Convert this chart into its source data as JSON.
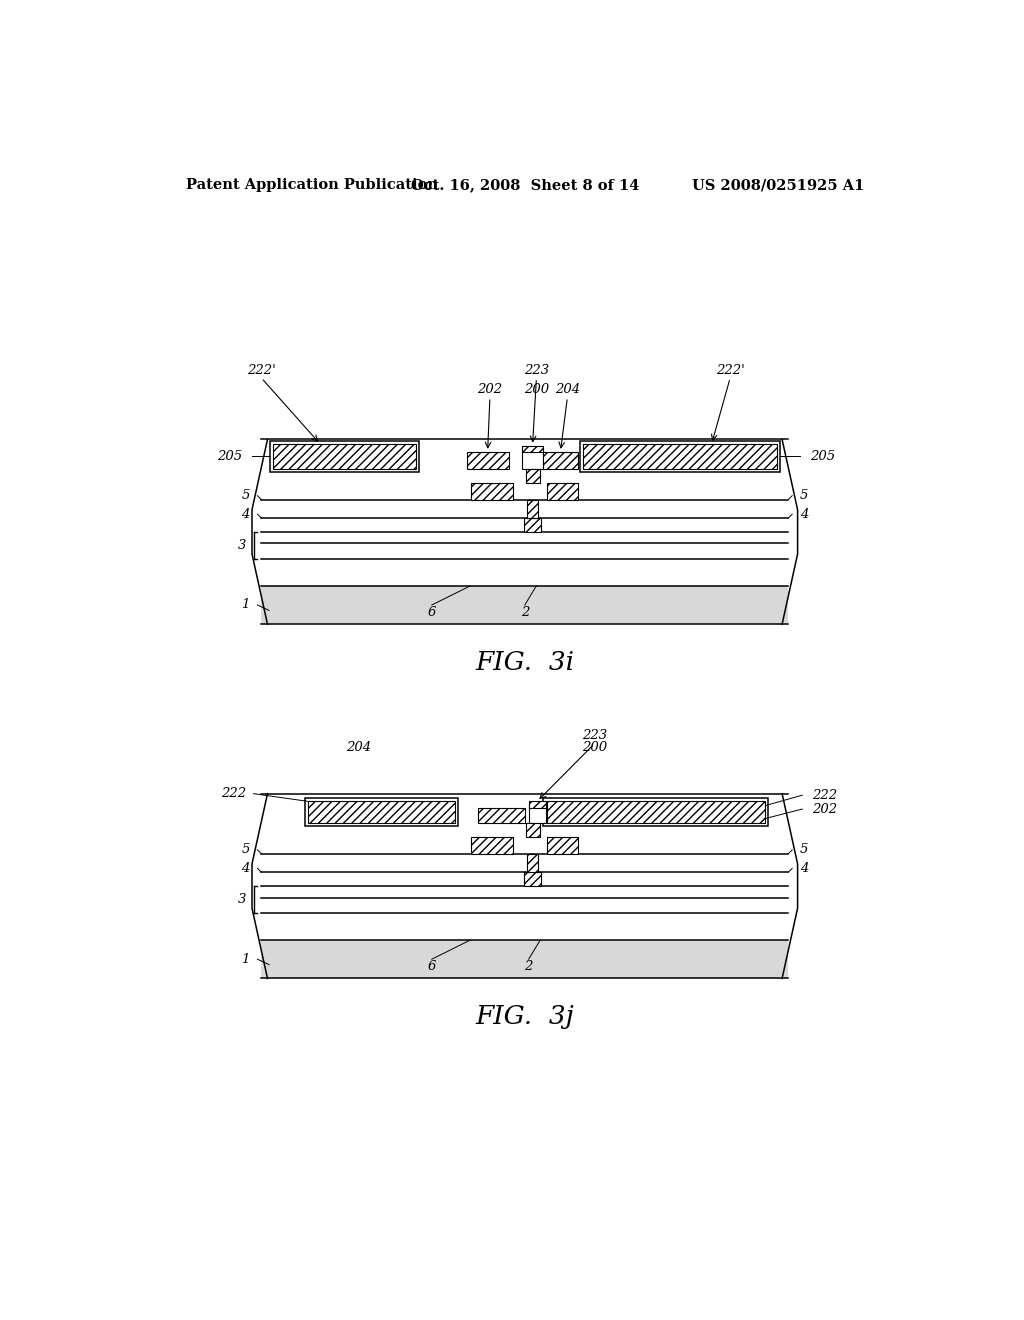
{
  "background_color": "#ffffff",
  "header_left": "Patent Application Publication",
  "header_mid": "Oct. 16, 2008  Sheet 8 of 14",
  "header_right": "US 2008/0251925 A1",
  "header_fontsize": 10.5,
  "fig_label_i": "FIG.  3i",
  "fig_label_j": "FIG.  3j",
  "fig_label_fontsize": 19,
  "annotation_fontsize": 9.5
}
